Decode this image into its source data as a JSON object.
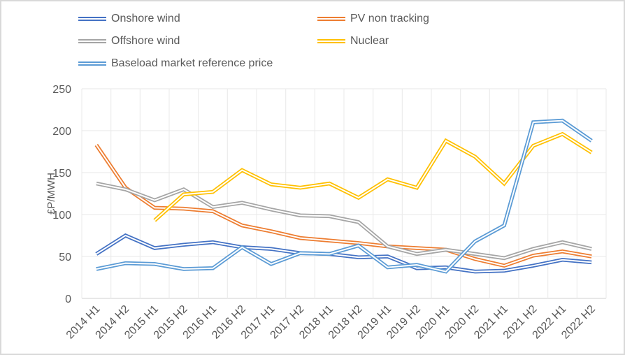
{
  "chart_data": {
    "type": "line",
    "title": "",
    "xlabel": "",
    "ylabel": "£P/MWH",
    "ylim": [
      0,
      250
    ],
    "yticks": [
      0,
      50,
      100,
      150,
      200,
      250
    ],
    "grid": true,
    "legend_position": "top",
    "categories": [
      "2014 H1",
      "2014 H2",
      "2015 H1",
      "2015 H2",
      "2016 H1",
      "2016 H2",
      "2017 H1",
      "2017 H2",
      "2018 H1",
      "2018 H2",
      "2019 H1",
      "2019 H2",
      "2020 H1",
      "2020 H2",
      "2021 H1",
      "2021 H2",
      "2022 H1",
      "2022 H2"
    ],
    "series": [
      {
        "name": "Onshore wind",
        "color": "#4472C4",
        "values": [
          53,
          75,
          60,
          64,
          67,
          61,
          59,
          54,
          53,
          49,
          50,
          36,
          37,
          32,
          33,
          39,
          46,
          43
        ]
      },
      {
        "name": "PV non tracking",
        "color": "#ED7D31",
        "values": [
          183,
          132,
          108,
          107,
          104,
          87,
          80,
          72,
          69,
          66,
          62,
          60,
          58,
          47,
          39,
          51,
          56,
          50
        ]
      },
      {
        "name": "Offshore wind",
        "color": "#A5A5A5",
        "values": [
          137,
          130,
          117,
          130,
          109,
          114,
          106,
          99,
          98,
          91,
          62,
          53,
          58,
          53,
          48,
          59,
          67,
          59
        ]
      },
      {
        "name": "Nuclear",
        "color": "#FFC000",
        "values": [
          null,
          null,
          93,
          124,
          127,
          153,
          136,
          132,
          137,
          120,
          142,
          132,
          188,
          169,
          137,
          182,
          196,
          174
        ]
      },
      {
        "name": "Baseload market reference price",
        "color": "#5B9BD5",
        "values": [
          35,
          42,
          41,
          35,
          36,
          61,
          41,
          54,
          53,
          63,
          37,
          40,
          32,
          68,
          87,
          210,
          212,
          188
        ]
      }
    ]
  },
  "legend": {
    "items": [
      {
        "label": "Onshore wind",
        "color": "#4472C4"
      },
      {
        "label": "PV non tracking",
        "color": "#ED7D31"
      },
      {
        "label": "Offshore wind",
        "color": "#A5A5A5"
      },
      {
        "label": "Nuclear",
        "color": "#FFC000"
      },
      {
        "label": "Baseload market reference price",
        "color": "#5B9BD5"
      }
    ]
  }
}
